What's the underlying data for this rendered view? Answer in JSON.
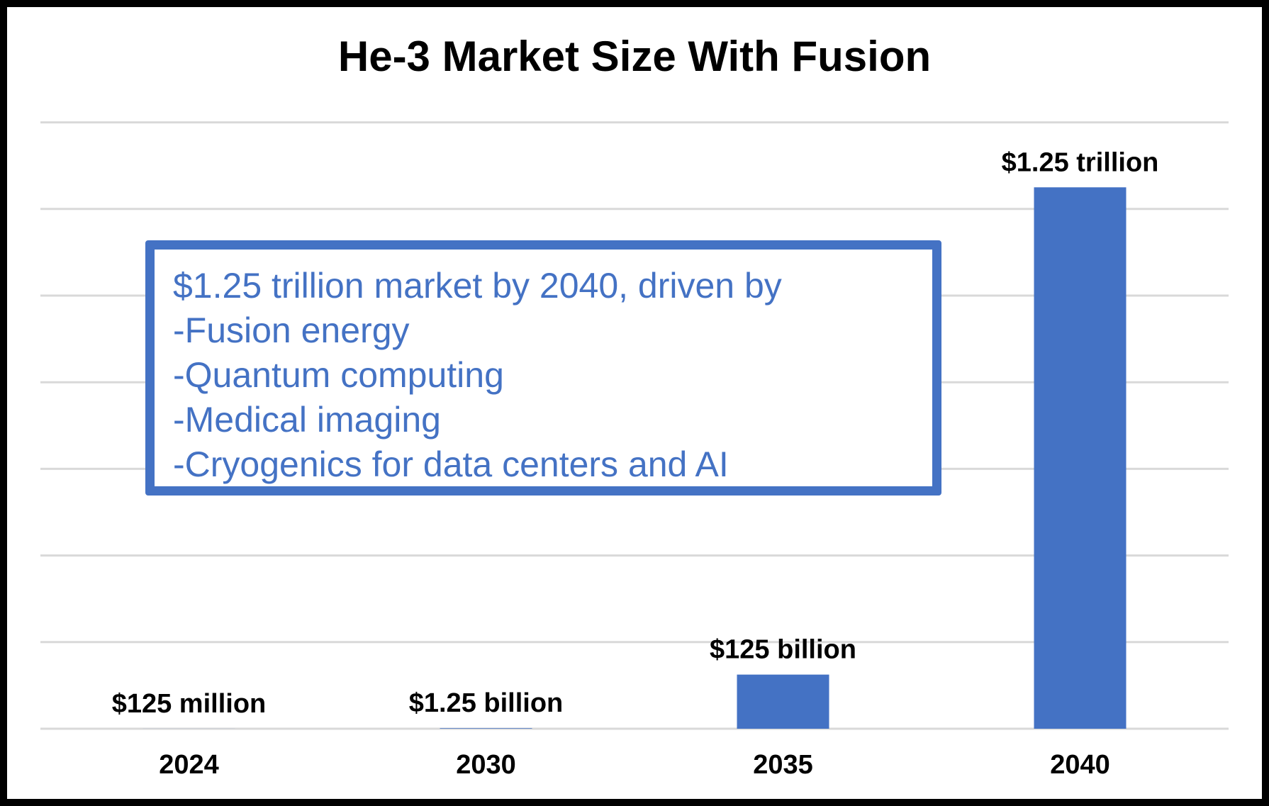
{
  "chart_data": {
    "type": "bar",
    "title": "He-3 Market Size With Fusion",
    "categories": [
      "2024",
      "2030",
      "2035",
      "2040"
    ],
    "values": [
      0.000125,
      0.00125,
      0.125,
      1.25
    ],
    "value_unit": "trillion USD",
    "data_labels": [
      "$125 million",
      "$1.25 billion",
      "$125 billion",
      "$1.25 trillion"
    ],
    "ylim": [
      0,
      1.4
    ],
    "grid": true,
    "legend": "none",
    "bar_color": "#4472C4"
  },
  "callout": {
    "lines": [
      "$1.25 trillion market by 2040, driven by",
      "-Fusion energy",
      "-Quantum computing",
      "-Medical imaging",
      "-Cryogenics for data centers and AI"
    ],
    "color": "#4472C4"
  }
}
